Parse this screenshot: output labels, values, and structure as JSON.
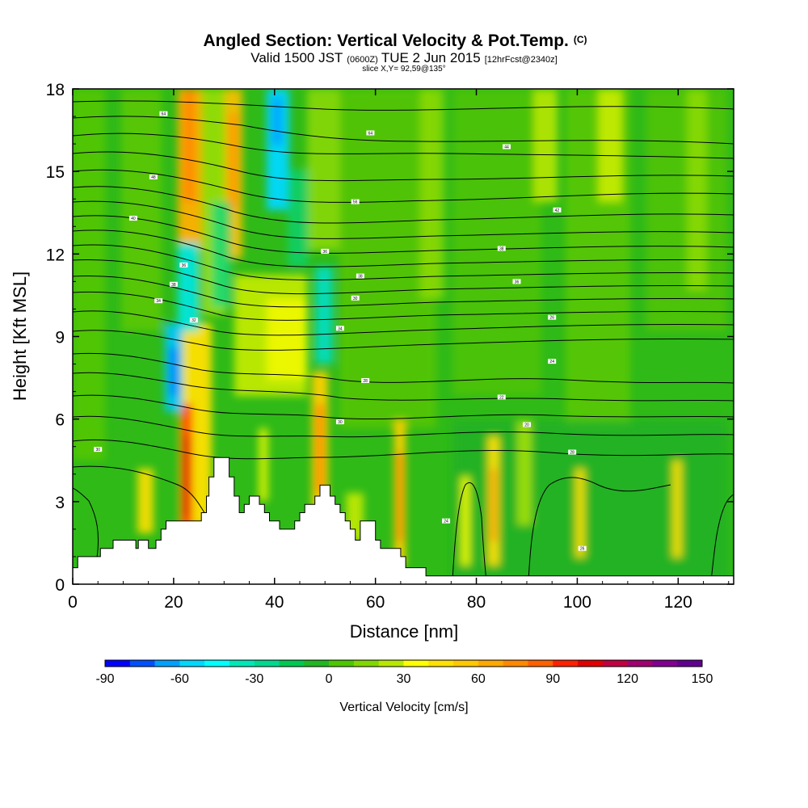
{
  "title": {
    "main": "Angled Section: Vertical Velocity & Pot.Temp.",
    "main_units": "(C)",
    "valid_prefix": "Valid 1500 JST",
    "valid_zulu": "(0600Z)",
    "valid_date": "TUE 2 Jun 2015",
    "forecast": "[12hrFcst@2340z]",
    "slice": "slice X,Y= 92,59@135°"
  },
  "chart_data": {
    "type": "heatmap",
    "xlabel": "Distance [nm]",
    "ylabel": "Height [Kft MSL]",
    "xlim": [
      0,
      131
    ],
    "ylim": [
      0,
      18
    ],
    "x_ticks": [
      0,
      20,
      40,
      60,
      80,
      100,
      120
    ],
    "x_tick_labels": [
      "0",
      "20",
      "40",
      "60",
      "80",
      "100",
      "120"
    ],
    "y_ticks": [
      0,
      3,
      6,
      9,
      12,
      15,
      18
    ],
    "y_tick_labels": [
      "0",
      "3",
      "6",
      "9",
      "12",
      "15",
      "18"
    ],
    "colorbar": {
      "title": "Vertical Velocity [cm/s]",
      "min": -90,
      "max": 150,
      "step": 10,
      "ticks": [
        -90,
        -60,
        -30,
        0,
        30,
        60,
        90,
        120,
        150
      ],
      "tick_labels": [
        "-90",
        "-60",
        "-30",
        "0",
        "30",
        "60",
        "90",
        "120",
        "150"
      ],
      "colors": [
        "#0000ff",
        "#0050ff",
        "#00a0ff",
        "#00d8ff",
        "#00ffff",
        "#00e8b8",
        "#00d890",
        "#00c850",
        "#20b820",
        "#4cc800",
        "#80d800",
        "#b8e800",
        "#ffff00",
        "#ffe000",
        "#ffc800",
        "#ffa800",
        "#ff8800",
        "#ff6000",
        "#ff2000",
        "#e00000",
        "#c00040",
        "#a00070",
        "#800090",
        "#600090"
      ]
    },
    "terrain_profile": [
      [
        0,
        0.6
      ],
      [
        1,
        0.6
      ],
      [
        1,
        1.0
      ],
      [
        5.5,
        1.0
      ],
      [
        5.5,
        1.3
      ],
      [
        8,
        1.3
      ],
      [
        8,
        1.6
      ],
      [
        12.5,
        1.6
      ],
      [
        12.5,
        1.3
      ],
      [
        13,
        1.3
      ],
      [
        13,
        1.6
      ],
      [
        15,
        1.6
      ],
      [
        15,
        1.3
      ],
      [
        16.5,
        1.3
      ],
      [
        16.5,
        1.6
      ],
      [
        17.5,
        1.6
      ],
      [
        17.5,
        2.0
      ],
      [
        18.5,
        2.0
      ],
      [
        18.5,
        2.3
      ],
      [
        25.5,
        2.3
      ],
      [
        25.5,
        2.6
      ],
      [
        26.5,
        2.6
      ],
      [
        26.5,
        3.2
      ],
      [
        27,
        3.2
      ],
      [
        27,
        3.9
      ],
      [
        28,
        3.9
      ],
      [
        28,
        4.6
      ],
      [
        31,
        4.6
      ],
      [
        31,
        3.9
      ],
      [
        32,
        3.9
      ],
      [
        32,
        3.2
      ],
      [
        33,
        3.2
      ],
      [
        33,
        2.6
      ],
      [
        34,
        2.6
      ],
      [
        34,
        2.9
      ],
      [
        35,
        2.9
      ],
      [
        35,
        3.2
      ],
      [
        37,
        3.2
      ],
      [
        37,
        2.9
      ],
      [
        38,
        2.9
      ],
      [
        38,
        2.6
      ],
      [
        39,
        2.6
      ],
      [
        39,
        2.3
      ],
      [
        41,
        2.3
      ],
      [
        41,
        2.0
      ],
      [
        44,
        2.0
      ],
      [
        44,
        2.3
      ],
      [
        45,
        2.3
      ],
      [
        45,
        2.6
      ],
      [
        46,
        2.6
      ],
      [
        46,
        2.9
      ],
      [
        48,
        2.9
      ],
      [
        48,
        3.2
      ],
      [
        49,
        3.2
      ],
      [
        49,
        3.6
      ],
      [
        51,
        3.6
      ],
      [
        51,
        3.2
      ],
      [
        52,
        3.2
      ],
      [
        52,
        2.9
      ],
      [
        53,
        2.9
      ],
      [
        53,
        2.6
      ],
      [
        54,
        2.6
      ],
      [
        54,
        2.3
      ],
      [
        55,
        2.3
      ],
      [
        55,
        2.0
      ],
      [
        56,
        2.0
      ],
      [
        56,
        1.6
      ],
      [
        57,
        1.6
      ],
      [
        57,
        2.3
      ],
      [
        60,
        2.3
      ],
      [
        60,
        1.6
      ],
      [
        61,
        1.6
      ],
      [
        61,
        1.3
      ],
      [
        65,
        1.3
      ],
      [
        65,
        1.0
      ],
      [
        66,
        1.0
      ],
      [
        66,
        0.6
      ],
      [
        70,
        0.6
      ],
      [
        70,
        0.3
      ],
      [
        131,
        0.3
      ]
    ],
    "contour_labels": [
      {
        "x": 18,
        "y": 17.1,
        "text": "64"
      },
      {
        "x": 59,
        "y": 16.4,
        "text": "64"
      },
      {
        "x": 86,
        "y": 15.9,
        "text": "44"
      },
      {
        "x": 16,
        "y": 14.8,
        "text": "48"
      },
      {
        "x": 56,
        "y": 13.9,
        "text": "56"
      },
      {
        "x": 96,
        "y": 13.6,
        "text": "42"
      },
      {
        "x": 12,
        "y": 13.3,
        "text": "40"
      },
      {
        "x": 50,
        "y": 12.1,
        "text": "36"
      },
      {
        "x": 85,
        "y": 12.2,
        "text": "38"
      },
      {
        "x": 22,
        "y": 11.6,
        "text": "36"
      },
      {
        "x": 57,
        "y": 11.2,
        "text": "38"
      },
      {
        "x": 88,
        "y": 11.0,
        "text": "36"
      },
      {
        "x": 20,
        "y": 10.9,
        "text": "38"
      },
      {
        "x": 56,
        "y": 10.4,
        "text": "30"
      },
      {
        "x": 17,
        "y": 10.3,
        "text": "34"
      },
      {
        "x": 24,
        "y": 9.6,
        "text": "32"
      },
      {
        "x": 95,
        "y": 9.7,
        "text": "26"
      },
      {
        "x": 53,
        "y": 9.3,
        "text": "34"
      },
      {
        "x": 95,
        "y": 8.1,
        "text": "24"
      },
      {
        "x": 58,
        "y": 7.4,
        "text": "28"
      },
      {
        "x": 85,
        "y": 6.8,
        "text": "22"
      },
      {
        "x": 53,
        "y": 5.9,
        "text": "30"
      },
      {
        "x": 90,
        "y": 5.8,
        "text": "20"
      },
      {
        "x": 5,
        "y": 4.9,
        "text": "30"
      },
      {
        "x": 99,
        "y": 4.8,
        "text": "28"
      },
      {
        "x": 74,
        "y": 2.3,
        "text": "24"
      },
      {
        "x": 101,
        "y": 1.3,
        "text": "26"
      }
    ]
  }
}
